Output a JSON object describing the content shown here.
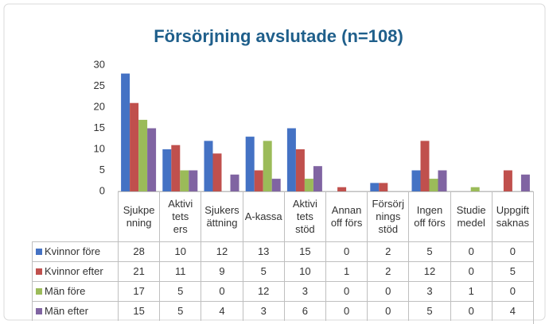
{
  "chart_data": {
    "type": "bar",
    "title": "Försörjning avslutade (n=108)",
    "categories": [
      "Sjukpe\nnning",
      "Aktivi\ntets\ners",
      "Sjukers\nättning",
      "A-kassa",
      "Aktivi\ntets\nstöd",
      "Annan\noff förs",
      "Försörj\nnings\nstöd",
      "Ingen\noff förs",
      "Studie\nmedel",
      "Uppgift\nsaknas"
    ],
    "series": [
      {
        "name": "Kvinnor före",
        "color": "#4472c4",
        "values": [
          28,
          10,
          12,
          13,
          15,
          0,
          2,
          5,
          0,
          0
        ]
      },
      {
        "name": "Kvinnor efter",
        "color": "#c0504d",
        "values": [
          21,
          11,
          9,
          5,
          10,
          1,
          2,
          12,
          0,
          5
        ]
      },
      {
        "name": "Män före",
        "color": "#9bbb59",
        "values": [
          17,
          5,
          0,
          12,
          3,
          0,
          0,
          3,
          1,
          0
        ]
      },
      {
        "name": "Män efter",
        "color": "#8064a2",
        "values": [
          15,
          5,
          4,
          3,
          6,
          0,
          0,
          5,
          0,
          4
        ]
      }
    ],
    "ylim": [
      0,
      30
    ],
    "yticks": [
      0,
      5,
      10,
      15,
      20,
      25,
      30
    ],
    "grid": false
  }
}
